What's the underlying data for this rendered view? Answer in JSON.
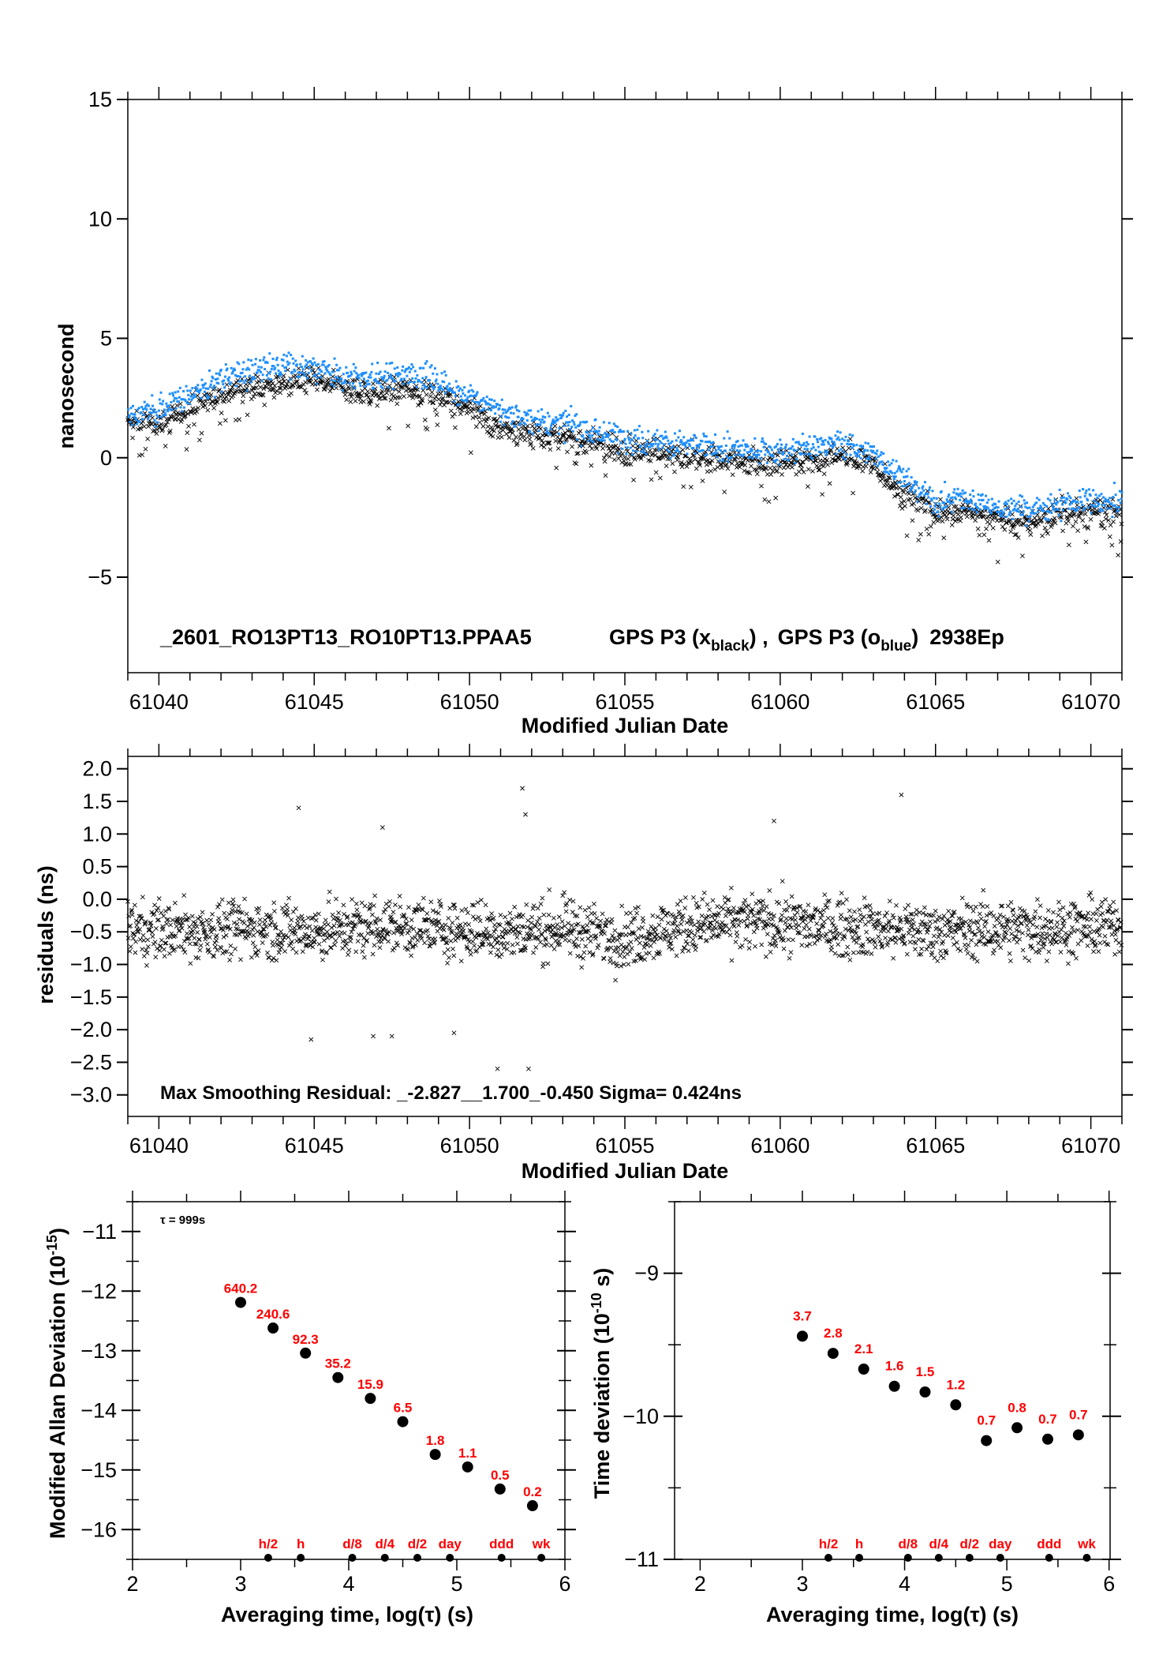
{
  "colors": {
    "black_series": "#000000",
    "blue_series": "#1e8fff",
    "labels": "#ff0000"
  },
  "chart_data": [
    {
      "type": "scatter",
      "title": "_2601_RO13PT13_RO10PT13.PPAA5    GPS P3 (x_black) ,  GPS P3 (o_blue)  2938Ep",
      "legend_parts": {
        "name": "_2601_RO13PT13_RO10PT13.PPAA5",
        "s1": "GPS P3 (x",
        "s1_sub": "black",
        "s1_end": ") ,",
        "s2": "GPS P3 (o",
        "s2_sub": "blue",
        "s2_end": ")",
        "ep": "2938Ep"
      },
      "xlabel": "Modified Julian Date",
      "ylabel": "nanosecond",
      "xlim": [
        61039,
        61071
      ],
      "ylim": [
        -9,
        15
      ],
      "xticks": [
        61040,
        61045,
        61050,
        61055,
        61060,
        61065,
        61070
      ],
      "yticks": [
        -5,
        0,
        5,
        10,
        15
      ],
      "ytick_labels": [
        "−5",
        "0",
        "5",
        "10",
        "15"
      ],
      "grid": false,
      "series": [
        {
          "marker": "x",
          "color": "#000000",
          "x": [
            61039,
            61040,
            61041,
            61042,
            61043,
            61044,
            61045,
            61046,
            61047,
            61048,
            61049,
            61050,
            61051,
            61052,
            61053,
            61054,
            61055,
            61056,
            61057,
            61058,
            61059,
            61060,
            61061,
            61062,
            61063,
            61064,
            61065,
            61066,
            61067,
            61068,
            61069,
            61070,
            61071
          ],
          "y": [
            1.3,
            1.5,
            2.0,
            2.7,
            3.0,
            3.2,
            3.2,
            2.9,
            2.7,
            2.9,
            2.6,
            2.0,
            1.3,
            1.0,
            0.9,
            0.6,
            0.3,
            0.3,
            0.0,
            -0.1,
            -0.2,
            -0.2,
            -0.1,
            0.1,
            -0.3,
            -1.5,
            -2.3,
            -2.2,
            -2.6,
            -2.7,
            -2.4,
            -2.3,
            -2.4
          ]
        },
        {
          "marker": "o",
          "color": "#1e8fff",
          "x": [
            61039,
            61040,
            61041,
            61042,
            61043,
            61044,
            61045,
            61046,
            61047,
            61048,
            61049,
            61050,
            61051,
            61052,
            61053,
            61054,
            61055,
            61056,
            61057,
            61058,
            61059,
            61060,
            61061,
            61062,
            61063,
            61064,
            61065,
            61066,
            61067,
            61068,
            61069,
            61070,
            61071
          ],
          "y": [
            1.8,
            2.0,
            2.6,
            3.3,
            3.6,
            3.8,
            3.7,
            3.4,
            3.3,
            3.5,
            3.2,
            2.6,
            1.9,
            1.6,
            1.4,
            1.1,
            0.8,
            0.7,
            0.5,
            0.4,
            0.3,
            0.3,
            0.4,
            0.6,
            0.2,
            -1.0,
            -1.8,
            -1.7,
            -2.1,
            -2.2,
            -1.9,
            -1.8,
            -1.9
          ]
        }
      ]
    },
    {
      "type": "scatter",
      "xlabel": "Modified Julian Date",
      "ylabel": "residuals (ns)",
      "annotation": "Max Smoothing Residual: _-2.827__1.700_-0.450  Sigma= 0.424ns",
      "xlim": [
        61039,
        61071
      ],
      "ylim": [
        -3.33,
        2.19
      ],
      "xticks": [
        61040,
        61045,
        61050,
        61055,
        61060,
        61065,
        61070
      ],
      "yticks": [
        -3.0,
        -2.5,
        -2.0,
        -1.5,
        -1.0,
        -0.5,
        0.0,
        0.5,
        1.0,
        1.5,
        2.0
      ],
      "ytick_labels": [
        "−3.0",
        "−2.5",
        "−2.0",
        "−1.5",
        "−1.0",
        "−0.5",
        "0.0",
        "0.5",
        "1.0",
        "1.5",
        "2.0"
      ],
      "grid": false,
      "series": [
        {
          "marker": "x",
          "color": "#000000",
          "x": [
            61039,
            61041,
            61043,
            61045,
            61047,
            61049,
            61051,
            61053,
            61055,
            61057,
            61059,
            61061,
            61063,
            61065,
            61067,
            61069,
            61071
          ],
          "y": [
            -0.45,
            -0.5,
            -0.45,
            -0.5,
            -0.4,
            -0.45,
            -0.5,
            -0.45,
            -0.6,
            -0.4,
            -0.35,
            -0.4,
            -0.45,
            -0.5,
            -0.45,
            -0.45,
            -0.4
          ],
          "outliers_x": [
            61044.5,
            61047.2,
            61051.7,
            61051.8,
            61059.8,
            61063.9,
            61044.9,
            61046.9,
            61047.5,
            61049.5,
            61050.9,
            61051.9
          ],
          "outliers_y": [
            1.4,
            1.1,
            1.7,
            1.3,
            1.2,
            1.6,
            -2.15,
            -2.1,
            -2.1,
            -2.05,
            -2.6,
            -2.6
          ]
        }
      ]
    },
    {
      "type": "scatter",
      "xlabel": "Averaging time, log(τ) (s)",
      "ylabel": "Modified Allan Deviation (10",
      "ylabel_sup": "-15",
      "ylabel_end": ")",
      "annotation": "τ = 999s",
      "xlim": [
        2,
        6
      ],
      "ylim": [
        -16.5,
        -10.5
      ],
      "xticks": [
        2,
        3,
        4,
        5,
        6
      ],
      "yticks": [
        -16,
        -15,
        -14,
        -13,
        -12,
        -11
      ],
      "ytick_labels": [
        "−16",
        "−15",
        "−14",
        "−13",
        "−12",
        "−11"
      ],
      "x": [
        3.0,
        3.3,
        3.6,
        3.9,
        4.2,
        4.5,
        4.8,
        5.1,
        5.4,
        5.7
      ],
      "y": [
        -12.19,
        -12.62,
        -13.04,
        -13.45,
        -13.8,
        -14.19,
        -14.74,
        -14.95,
        -15.32,
        -15.6
      ],
      "labels": [
        "640.2",
        "240.6",
        "92.3",
        "35.2",
        "15.9",
        "6.5",
        "1.8",
        "1.1",
        "0.5",
        "0.2"
      ],
      "markers_x": [
        3.255,
        3.556,
        4.033,
        4.334,
        4.635,
        4.936,
        5.414,
        5.782
      ],
      "markers": [
        "h/2",
        "h",
        "d/8",
        "d/4",
        "d/2",
        "day",
        "ddd",
        "wk"
      ]
    },
    {
      "type": "scatter",
      "xlabel": "Averaging time, log(τ) (s)",
      "ylabel": "Time deviation (10",
      "ylabel_sup": "-10",
      "ylabel_end": " s)",
      "xlim": [
        1.75,
        6.01
      ],
      "ylim": [
        -11,
        -8.5
      ],
      "xticks": [
        2,
        3,
        4,
        5,
        6
      ],
      "yticks": [
        -11,
        -10,
        -9
      ],
      "ytick_labels": [
        "−11",
        "−10",
        "−9"
      ],
      "x": [
        3.0,
        3.3,
        3.6,
        3.9,
        4.2,
        4.5,
        4.8,
        5.1,
        5.4,
        5.7
      ],
      "y": [
        -9.44,
        -9.56,
        -9.67,
        -9.79,
        -9.83,
        -9.92,
        -10.17,
        -10.08,
        -10.16,
        -10.13
      ],
      "labels": [
        "3.7",
        "2.8",
        "2.1",
        "1.6",
        "1.5",
        "1.2",
        "0.7",
        "0.8",
        "0.7",
        "0.7"
      ],
      "markers_x": [
        3.255,
        3.556,
        4.033,
        4.334,
        4.635,
        4.936,
        5.414,
        5.782
      ],
      "markers": [
        "h/2",
        "h",
        "d/8",
        "d/4",
        "d/2",
        "day",
        "ddd",
        "wk"
      ]
    }
  ]
}
